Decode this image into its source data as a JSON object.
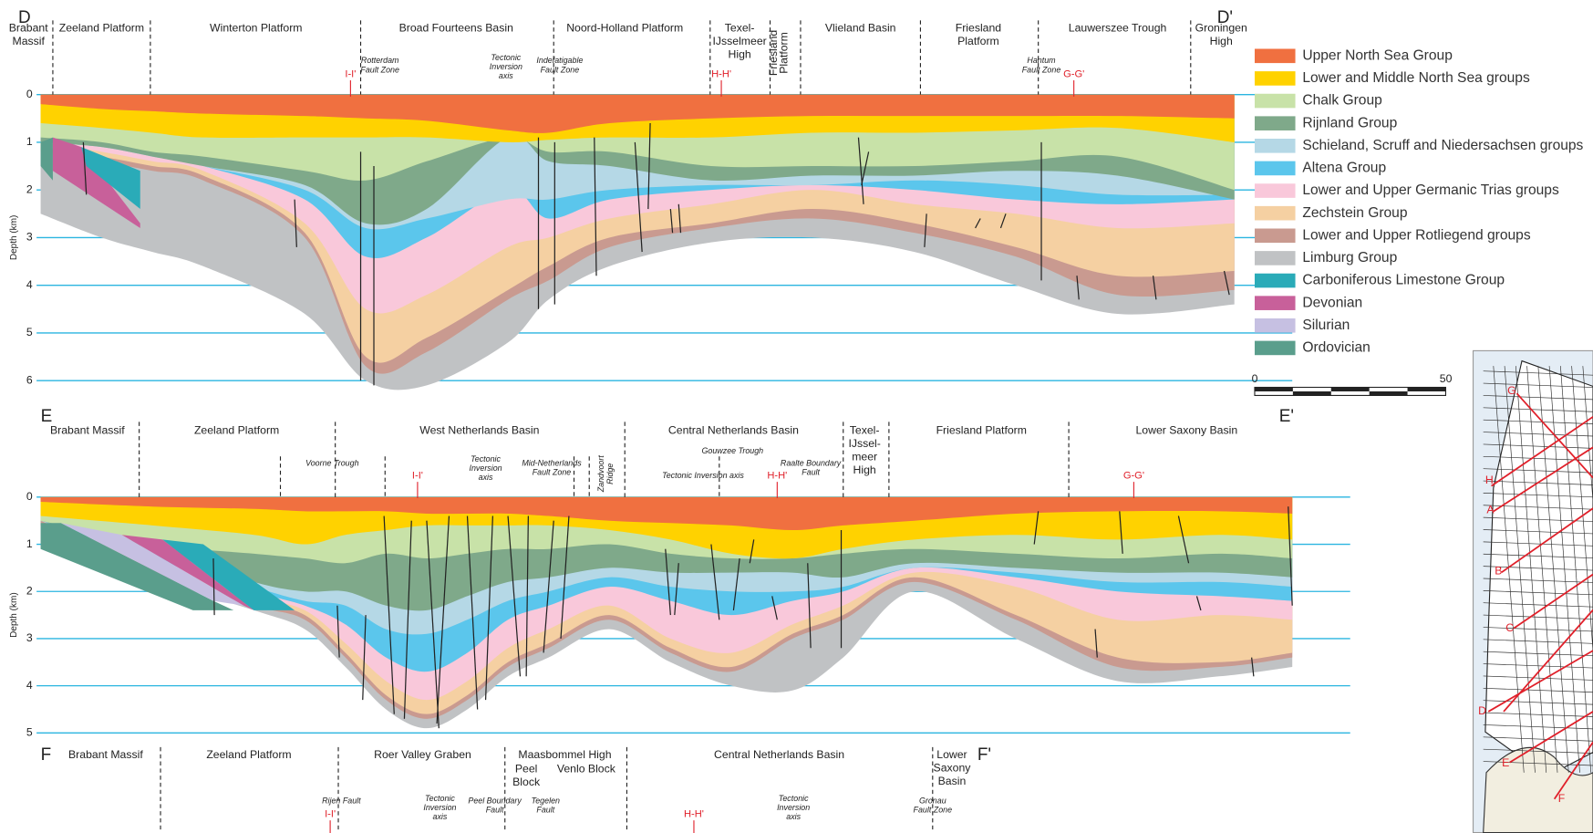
{
  "sections": [
    {
      "start": "D",
      "end": "D'",
      "axis_label": "Depth (km)",
      "depth_ticks": [
        0,
        1,
        2,
        3,
        4,
        5,
        6
      ],
      "regions": [
        [
          "Brabant",
          "Massif"
        ],
        [
          "Zeeland Platform"
        ],
        [
          "Winterton Platform"
        ],
        [
          "Broad Fourteens Basin"
        ],
        [
          "Noord-Holland Platform"
        ],
        [
          "Texel-",
          "IJsselmeer",
          "High"
        ],
        [
          "Friesland",
          "Platform"
        ],
        [
          "Vlieland Basin"
        ],
        [
          "Friesland",
          "Platform"
        ],
        [
          "Lauwerszee Trough"
        ],
        [
          "Groningen",
          "High"
        ]
      ],
      "features": [
        [
          "Rotterdam",
          "Fault Zone"
        ],
        [
          "Tectonic",
          "Inversion",
          "axis"
        ],
        [
          "Indefatigable",
          "Fault Zone"
        ],
        [
          "Hantum",
          "Fault Zone"
        ]
      ],
      "refs": [
        "I-I'",
        "H-H'",
        "G-G'"
      ]
    },
    {
      "start": "E",
      "end": "E'",
      "axis_label": "Depth (km)",
      "depth_ticks": [
        0,
        1,
        2,
        3,
        4,
        5
      ],
      "regions": [
        [
          "Brabant Massif"
        ],
        [
          "Zeeland Platform"
        ],
        [
          "West Netherlands Basin"
        ],
        [
          "Central Netherlands Basin"
        ],
        [
          "Texel-",
          "IJssel-",
          "meer",
          "High"
        ],
        [
          "Friesland Platform"
        ],
        [
          "Lower Saxony Basin"
        ]
      ],
      "features": [
        [
          "Voorne Trough"
        ],
        [
          "Tectonic",
          "Inversion",
          "axis"
        ],
        [
          "Mid-Netherlands",
          "Fault Zone"
        ],
        [
          "Zandvoort",
          "Ridge"
        ],
        [
          "Gouwzee Trough"
        ],
        [
          "Tectonic Inversion axis"
        ],
        [
          "Raalte Boundary",
          "Fault"
        ]
      ],
      "refs": [
        "I-I'",
        "H-H'",
        "G-G'"
      ]
    },
    {
      "start": "F",
      "end": "F'",
      "regions": [
        [
          "Brabant Massif"
        ],
        [
          "Zeeland Platform"
        ],
        [
          "Roer Valley Graben"
        ],
        [
          "Maasbommel High"
        ],
        [
          "Peel",
          "Block"
        ],
        [
          "Venlo Block"
        ],
        [
          "Central Netherlands Basin"
        ],
        [
          "Lower",
          "Saxony",
          "Basin"
        ]
      ],
      "features": [
        [
          "Rijen Fault"
        ],
        [
          "Tectonic",
          "Inversion",
          "axis"
        ],
        [
          "Peel Boundary",
          "Fault"
        ],
        [
          "Tegelen",
          "Fault"
        ],
        [
          "Tectonic",
          "Inversion",
          "axis"
        ],
        [
          "Gronau",
          "Fault Zone"
        ]
      ],
      "refs": [
        "I-I'",
        "H-H'"
      ]
    }
  ],
  "legend": [
    {
      "name": "Upper North Sea Group",
      "color": "#f07040"
    },
    {
      "name": "Lower and Middle North Sea groups",
      "color": "#ffd200"
    },
    {
      "name": "Chalk Group",
      "color": "#c8e2a8"
    },
    {
      "name": "Rijnland Group",
      "color": "#7fa98a"
    },
    {
      "name": "Schieland, Scruff and Niedersachsen groups",
      "color": "#b5d8e6"
    },
    {
      "name": "Altena Group",
      "color": "#5bc6ec"
    },
    {
      "name": "Lower and Upper Germanic Trias groups",
      "color": "#f9c8da"
    },
    {
      "name": "Zechstein Group",
      "color": "#f5d0a2"
    },
    {
      "name": "Lower and Upper Rotliegend groups",
      "color": "#c99a90"
    },
    {
      "name": "Limburg Group",
      "color": "#c0c2c4"
    },
    {
      "name": "Carboniferous Limestone Group",
      "color": "#2aabb8"
    },
    {
      "name": "Devonian",
      "color": "#c8609a"
    },
    {
      "name": "Silurian",
      "color": "#c6c0e2"
    },
    {
      "name": "Ordovician",
      "color": "#5a9e8c"
    }
  ],
  "scale": {
    "start": "0",
    "end": "50"
  },
  "map": {
    "labels": [
      "G",
      "H",
      "A",
      "B",
      "C",
      "D",
      "E",
      "F"
    ]
  }
}
